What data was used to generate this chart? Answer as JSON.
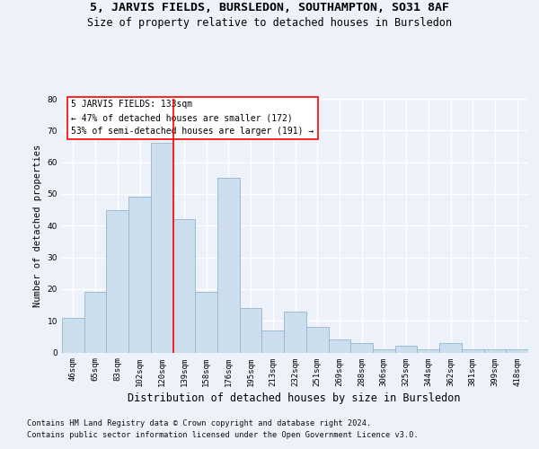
{
  "title1": "5, JARVIS FIELDS, BURSLEDON, SOUTHAMPTON, SO31 8AF",
  "title2": "Size of property relative to detached houses in Bursledon",
  "xlabel": "Distribution of detached houses by size in Bursledon",
  "ylabel": "Number of detached properties",
  "categories": [
    "46sqm",
    "65sqm",
    "83sqm",
    "102sqm",
    "120sqm",
    "139sqm",
    "158sqm",
    "176sqm",
    "195sqm",
    "213sqm",
    "232sqm",
    "251sqm",
    "269sqm",
    "288sqm",
    "306sqm",
    "325sqm",
    "344sqm",
    "362sqm",
    "381sqm",
    "399sqm",
    "418sqm"
  ],
  "values": [
    11,
    19,
    45,
    49,
    66,
    42,
    19,
    55,
    14,
    7,
    13,
    8,
    4,
    3,
    1,
    2,
    1,
    3,
    1,
    1,
    1
  ],
  "bar_color": "#ccdded",
  "bar_edge_color": "#90b8d0",
  "vline_x": 4.5,
  "vline_color": "red",
  "annotation_line1": "5 JARVIS FIELDS: 133sqm",
  "annotation_line2": "← 47% of detached houses are smaller (172)",
  "annotation_line3": "53% of semi-detached houses are larger (191) →",
  "annotation_box_color": "white",
  "annotation_box_edge": "red",
  "ylim": [
    0,
    80
  ],
  "yticks": [
    0,
    10,
    20,
    30,
    40,
    50,
    60,
    70,
    80
  ],
  "footer_line1": "Contains HM Land Registry data © Crown copyright and database right 2024.",
  "footer_line2": "Contains public sector information licensed under the Open Government Licence v3.0.",
  "bg_color": "#edf1f9",
  "grid_color": "#ffffff",
  "title1_fontsize": 9.5,
  "title2_fontsize": 8.5,
  "xlabel_fontsize": 8.5,
  "ylabel_fontsize": 7.5,
  "tick_fontsize": 6.5,
  "annot_fontsize": 7,
  "footer_fontsize": 6.2
}
